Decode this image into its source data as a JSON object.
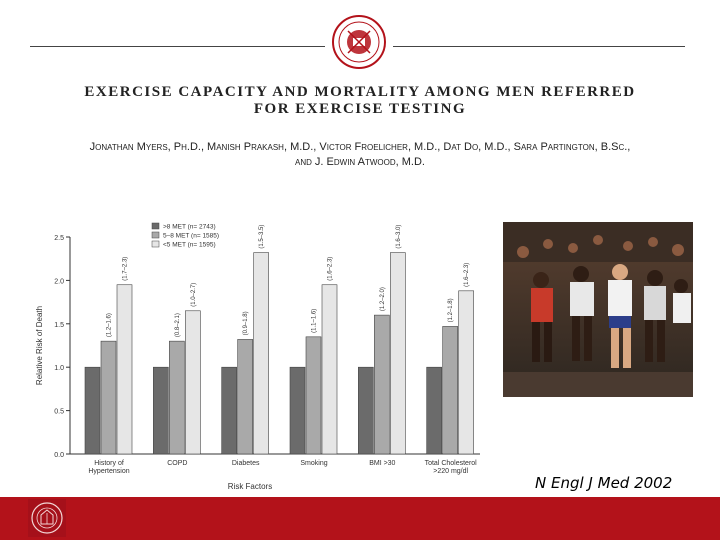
{
  "slide": {
    "title_line1": "EXERCISE CAPACITY AND MORTALITY AMONG MEN REFERRED",
    "title_line2": "FOR EXERCISE TESTING",
    "authors_line1": "Jonathan Myers, Ph.D., Manish Prakash, M.D., Victor Froelicher, M.D., Dat Do, M.D., Sara Partington, B.Sc.,",
    "authors_line2": "and J. Edwin Atwood, M.D.",
    "citation": "N Engl J Med 2002",
    "seal_icon": "university-seal-icon",
    "photo_icon": "marathon-runners-photo",
    "footer_color": "#b3121a"
  },
  "chart_data": {
    "type": "bar",
    "categories": [
      [
        "History of",
        "Hypertension"
      ],
      [
        "COPD"
      ],
      [
        "Diabetes"
      ],
      [
        "Smoking"
      ],
      [
        "BMI >30"
      ],
      [
        "Total Cholesterol",
        ">220 mg/dl"
      ]
    ],
    "series": [
      {
        "name": ">8 MET (n= 2743)",
        "color": "#6b6b6b",
        "values": [
          1.0,
          1.0,
          1.0,
          1.0,
          1.0,
          1.0
        ]
      },
      {
        "name": "5–8 MET (n= 1585)",
        "color": "#a9a9a9",
        "values": [
          1.3,
          1.3,
          1.32,
          1.35,
          1.6,
          1.47
        ]
      },
      {
        "name": "<5 MET (n= 1595)",
        "color": "#e6e6e6",
        "values": [
          1.95,
          1.65,
          2.32,
          1.95,
          2.32,
          1.88
        ]
      }
    ],
    "ci_labels": [
      [
        "",
        "(1.2–1.6)",
        "(1.7–2.3)"
      ],
      [
        "",
        "(0.8–2.1)",
        "(1.0–2.7)"
      ],
      [
        "",
        "(0.9–1.8)",
        "(1.5–3.5)"
      ],
      [
        "",
        "(1.1–1.6)",
        "(1.6–2.3)"
      ],
      [
        "",
        "(1.2–2.0)",
        "(1.6–3.0)"
      ],
      [
        "",
        "(1.2–1.8)",
        "(1.6–2.3)"
      ]
    ],
    "yticks": [
      "0.0",
      "0.5",
      "1.0",
      "1.5",
      "2.0",
      "2.5"
    ],
    "ylim": [
      0,
      2.5
    ],
    "ylabel": "Relative Risk of Death",
    "xlabel": "Risk Factors",
    "legend_position": "top-left",
    "grid": false
  }
}
